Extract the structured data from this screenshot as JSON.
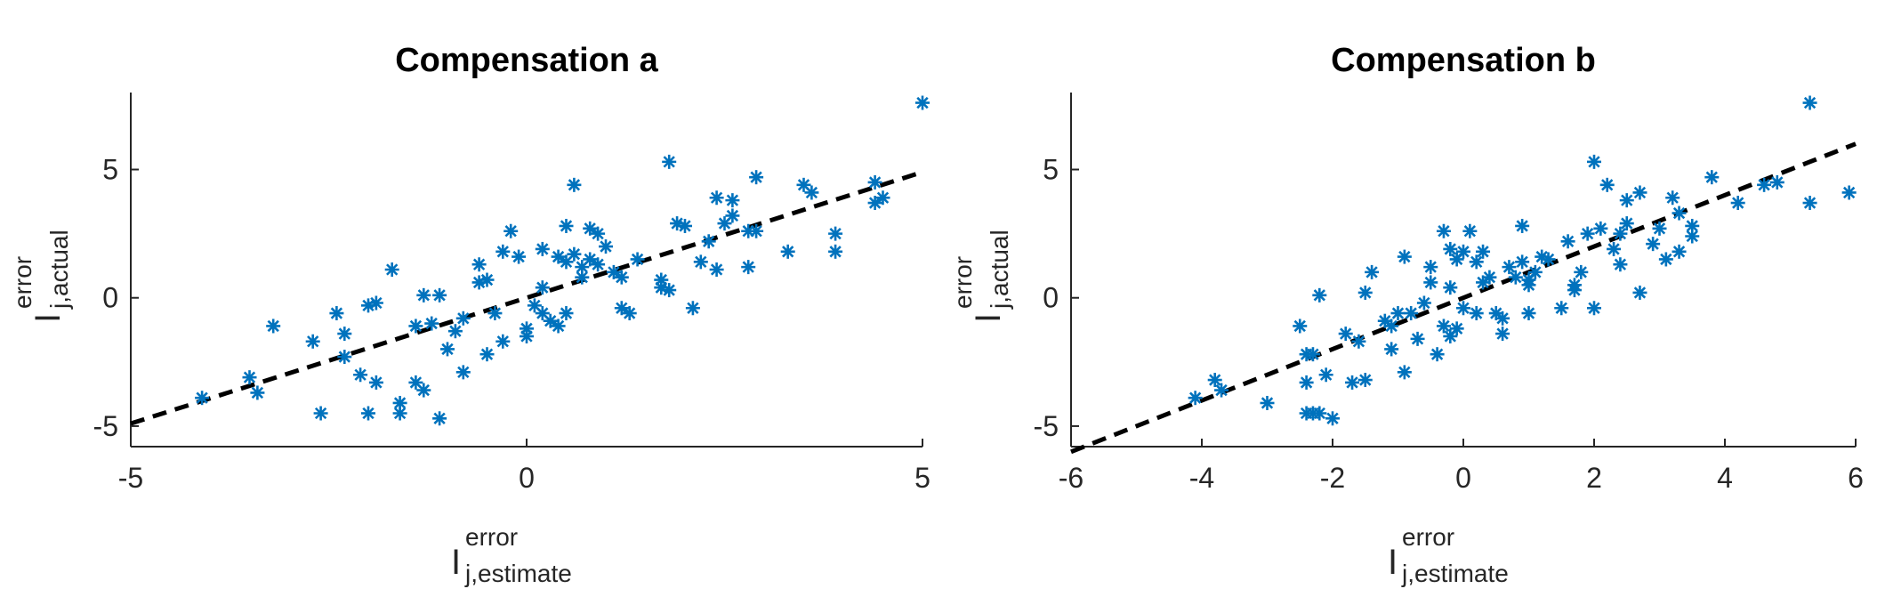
{
  "colors": {
    "marker": "#0072BD",
    "fit_line": "#000000",
    "axis": "#262626"
  },
  "chart_data": [
    {
      "type": "scatter",
      "title": "Compensation a",
      "marker": "asterisk",
      "xlabel": {
        "main": "I",
        "sup": "error",
        "sub": "j,estimate"
      },
      "ylabel": {
        "main": "I",
        "sup": "error",
        "sub": "j,actual"
      },
      "xlim": [
        -5,
        5
      ],
      "ylim": [
        -5.8,
        8
      ],
      "xticks": [
        "-5",
        "0",
        "5"
      ],
      "yticks": [
        "-5",
        "0",
        "5"
      ],
      "xticks_values": [
        -5,
        0,
        5
      ],
      "yticks_values": [
        -5,
        0,
        5
      ],
      "fit_line": {
        "x": [
          -5,
          5
        ],
        "y": [
          -4.9,
          4.9
        ]
      },
      "points": [
        [
          -4.1,
          -3.9
        ],
        [
          -3.5,
          -3.1
        ],
        [
          -3.4,
          -3.7
        ],
        [
          -3.2,
          -1.1
        ],
        [
          -2.7,
          -1.7
        ],
        [
          -2.6,
          -4.5
        ],
        [
          -2.4,
          -0.6
        ],
        [
          -2.3,
          -2.3
        ],
        [
          -2.3,
          -1.4
        ],
        [
          -2.1,
          -3.0
        ],
        [
          -2.0,
          -4.5
        ],
        [
          -2.0,
          -0.3
        ],
        [
          -1.9,
          -0.2
        ],
        [
          -1.9,
          -3.3
        ],
        [
          -1.7,
          1.1
        ],
        [
          -1.6,
          -4.5
        ],
        [
          -1.6,
          -4.1
        ],
        [
          -1.4,
          -3.3
        ],
        [
          -1.4,
          -1.1
        ],
        [
          -1.3,
          -3.6
        ],
        [
          -1.3,
          0.1
        ],
        [
          -1.2,
          -1.0
        ],
        [
          -1.1,
          -4.7
        ],
        [
          -1.1,
          0.1
        ],
        [
          -1.0,
          -2.0
        ],
        [
          -0.9,
          -1.3
        ],
        [
          -0.8,
          -2.9
        ],
        [
          -0.8,
          -0.8
        ],
        [
          -0.6,
          0.6
        ],
        [
          -0.6,
          1.3
        ],
        [
          -0.5,
          -2.2
        ],
        [
          -0.5,
          0.7
        ],
        [
          -0.4,
          -0.6
        ],
        [
          -0.3,
          1.8
        ],
        [
          -0.3,
          -1.7
        ],
        [
          -0.2,
          2.6
        ],
        [
          -0.1,
          1.6
        ],
        [
          0.0,
          -1.5
        ],
        [
          0.0,
          -1.2
        ],
        [
          0.1,
          -0.3
        ],
        [
          0.2,
          1.9
        ],
        [
          0.2,
          0.4
        ],
        [
          0.2,
          -0.6
        ],
        [
          0.3,
          -0.9
        ],
        [
          0.4,
          1.6
        ],
        [
          0.4,
          -1.1
        ],
        [
          0.5,
          1.4
        ],
        [
          0.5,
          2.8
        ],
        [
          0.5,
          -0.6
        ],
        [
          0.6,
          1.7
        ],
        [
          0.6,
          4.4
        ],
        [
          0.7,
          0.8
        ],
        [
          0.7,
          1.2
        ],
        [
          0.8,
          2.7
        ],
        [
          0.8,
          1.5
        ],
        [
          0.9,
          1.3
        ],
        [
          0.9,
          2.5
        ],
        [
          1.0,
          2.0
        ],
        [
          1.1,
          1.0
        ],
        [
          1.2,
          -0.4
        ],
        [
          1.2,
          0.8
        ],
        [
          1.3,
          -0.6
        ],
        [
          1.4,
          1.5
        ],
        [
          1.7,
          0.7
        ],
        [
          1.7,
          0.4
        ],
        [
          1.8,
          0.3
        ],
        [
          1.8,
          5.3
        ],
        [
          1.9,
          2.9
        ],
        [
          2.0,
          2.8
        ],
        [
          2.1,
          -0.4
        ],
        [
          2.2,
          1.4
        ],
        [
          2.3,
          2.2
        ],
        [
          2.4,
          3.9
        ],
        [
          2.4,
          1.1
        ],
        [
          2.5,
          2.9
        ],
        [
          2.6,
          3.2
        ],
        [
          2.6,
          3.8
        ],
        [
          2.8,
          2.6
        ],
        [
          2.8,
          1.2
        ],
        [
          2.9,
          2.6
        ],
        [
          2.9,
          4.7
        ],
        [
          3.3,
          1.8
        ],
        [
          3.5,
          4.4
        ],
        [
          3.6,
          4.1
        ],
        [
          3.9,
          1.8
        ],
        [
          3.9,
          2.5
        ],
        [
          4.4,
          4.5
        ],
        [
          4.4,
          3.7
        ],
        [
          4.5,
          3.9
        ],
        [
          5.0,
          7.6
        ]
      ]
    },
    {
      "type": "scatter",
      "title": "Compensation b",
      "marker": "asterisk",
      "xlabel": {
        "main": "I",
        "sup": "error",
        "sub": "j,estimate"
      },
      "ylabel": {
        "main": "I",
        "sup": "error",
        "sub": "j,actual"
      },
      "xlim": [
        -6,
        6
      ],
      "ylim": [
        -5.8,
        8
      ],
      "xticks": [
        "-6",
        "-4",
        "-2",
        "0",
        "2",
        "4",
        "6"
      ],
      "yticks": [
        "-5",
        "0",
        "5"
      ],
      "xticks_values": [
        -6,
        -4,
        -2,
        0,
        2,
        4,
        6
      ],
      "yticks_values": [
        -5,
        0,
        5
      ],
      "fit_line": {
        "x": [
          -6,
          6
        ],
        "y": [
          -6,
          6
        ]
      },
      "points": [
        [
          -4.1,
          -3.9
        ],
        [
          -3.8,
          -3.2
        ],
        [
          -3.7,
          -3.6
        ],
        [
          -3.0,
          -4.1
        ],
        [
          -2.5,
          -1.1
        ],
        [
          -2.4,
          -2.2
        ],
        [
          -2.4,
          -3.3
        ],
        [
          -2.4,
          -4.5
        ],
        [
          -2.3,
          -2.2
        ],
        [
          -2.3,
          -4.5
        ],
        [
          -2.2,
          0.1
        ],
        [
          -2.2,
          -4.5
        ],
        [
          -2.1,
          -3.0
        ],
        [
          -2.0,
          -4.7
        ],
        [
          -1.8,
          -1.4
        ],
        [
          -1.7,
          -3.3
        ],
        [
          -1.6,
          -1.7
        ],
        [
          -1.5,
          -3.2
        ],
        [
          -1.5,
          0.2
        ],
        [
          -1.4,
          1.0
        ],
        [
          -1.2,
          -0.9
        ],
        [
          -1.1,
          -1.1
        ],
        [
          -1.1,
          -2.0
        ],
        [
          -1.0,
          -0.6
        ],
        [
          -0.9,
          -2.9
        ],
        [
          -0.9,
          1.6
        ],
        [
          -0.8,
          -0.6
        ],
        [
          -0.7,
          -1.6
        ],
        [
          -0.6,
          -0.2
        ],
        [
          -0.5,
          0.6
        ],
        [
          -0.5,
          1.2
        ],
        [
          -0.4,
          -2.2
        ],
        [
          -0.3,
          -1.1
        ],
        [
          -0.3,
          2.6
        ],
        [
          -0.2,
          1.9
        ],
        [
          -0.2,
          0.4
        ],
        [
          -0.2,
          -1.5
        ],
        [
          -0.1,
          1.5
        ],
        [
          -0.1,
          -1.2
        ],
        [
          0.0,
          -0.4
        ],
        [
          0.0,
          1.8
        ],
        [
          0.1,
          2.6
        ],
        [
          0.2,
          -0.6
        ],
        [
          0.2,
          1.4
        ],
        [
          0.3,
          1.8
        ],
        [
          0.3,
          0.6
        ],
        [
          0.4,
          0.8
        ],
        [
          0.5,
          -0.6
        ],
        [
          0.6,
          -0.8
        ],
        [
          0.6,
          -1.4
        ],
        [
          0.7,
          1.2
        ],
        [
          0.8,
          0.8
        ],
        [
          0.9,
          2.8
        ],
        [
          0.9,
          1.4
        ],
        [
          1.0,
          0.7
        ],
        [
          1.0,
          0.5
        ],
        [
          1.0,
          -0.6
        ],
        [
          1.1,
          1.0
        ],
        [
          1.2,
          1.6
        ],
        [
          1.3,
          1.5
        ],
        [
          1.5,
          -0.4
        ],
        [
          1.6,
          2.2
        ],
        [
          1.7,
          0.5
        ],
        [
          1.7,
          0.3
        ],
        [
          1.8,
          1.0
        ],
        [
          1.9,
          2.5
        ],
        [
          2.0,
          5.3
        ],
        [
          2.0,
          -0.4
        ],
        [
          2.1,
          2.7
        ],
        [
          2.2,
          4.4
        ],
        [
          2.3,
          1.9
        ],
        [
          2.4,
          2.5
        ],
        [
          2.4,
          1.3
        ],
        [
          2.5,
          2.9
        ],
        [
          2.5,
          3.8
        ],
        [
          2.7,
          4.1
        ],
        [
          2.7,
          0.2
        ],
        [
          2.9,
          2.1
        ],
        [
          3.0,
          2.7
        ],
        [
          3.1,
          1.5
        ],
        [
          3.2,
          3.9
        ],
        [
          3.3,
          3.3
        ],
        [
          3.3,
          1.8
        ],
        [
          3.5,
          2.4
        ],
        [
          3.5,
          2.8
        ],
        [
          3.8,
          4.7
        ],
        [
          4.2,
          3.7
        ],
        [
          4.6,
          4.4
        ],
        [
          4.8,
          4.5
        ],
        [
          5.3,
          7.6
        ],
        [
          5.3,
          3.7
        ],
        [
          5.9,
          4.1
        ]
      ]
    }
  ]
}
